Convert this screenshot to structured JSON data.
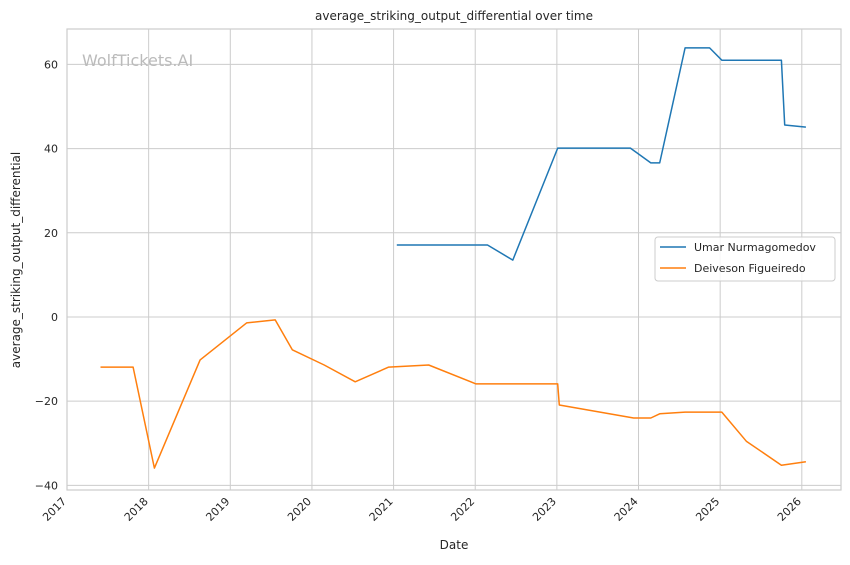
{
  "chart_data": {
    "type": "line",
    "title": "average_striking_output_differential over time",
    "xlabel": "Date",
    "ylabel": "average_striking_output_differential",
    "watermark": "WolfTickets.AI",
    "xlim": [
      2017.0,
      2026.48
    ],
    "ylim": [
      -41.1,
      68.4
    ],
    "grid": true,
    "legend_position": "center-right",
    "x_ticks": [
      2017,
      2018,
      2019,
      2020,
      2021,
      2022,
      2023,
      2024,
      2025,
      2026
    ],
    "x_tick_labels": [
      "2017",
      "2018",
      "2019",
      "2020",
      "2021",
      "2022",
      "2023",
      "2024",
      "2025",
      "2026"
    ],
    "y_ticks": [
      -40,
      -20,
      0,
      20,
      40,
      60
    ],
    "y_tick_labels": [
      "−40",
      "−20",
      "0",
      "20",
      "40",
      "60"
    ],
    "series": [
      {
        "name": "Umar Nurmagomedov",
        "color": "#1f77b4",
        "x": [
          2021.04,
          2022.15,
          2022.46,
          2023.01,
          2023.9,
          2024.15,
          2024.26,
          2024.57,
          2024.87,
          2025.02,
          2025.75,
          2025.79,
          2026.05
        ],
        "y": [
          17.1,
          17.1,
          13.5,
          40.1,
          40.1,
          36.6,
          36.6,
          63.9,
          63.9,
          61.0,
          61.0,
          45.6,
          45.1
        ]
      },
      {
        "name": "Deiveson Figueiredo",
        "color": "#ff7f0e",
        "x": [
          2017.41,
          2017.81,
          2018.07,
          2018.63,
          2019.2,
          2019.55,
          2019.76,
          2020.15,
          2020.53,
          2020.94,
          2021.43,
          2022.01,
          2023.01,
          2023.03,
          2023.94,
          2024.15,
          2024.26,
          2024.57,
          2025.02,
          2025.32,
          2025.75,
          2026.05
        ],
        "y": [
          -11.9,
          -11.9,
          -35.9,
          -10.2,
          -1.4,
          -0.7,
          -7.8,
          -11.4,
          -15.4,
          -11.9,
          -11.4,
          -15.9,
          -15.9,
          -20.9,
          -24.0,
          -24.0,
          -23.0,
          -22.6,
          -22.6,
          -29.5,
          -35.2,
          -34.4
        ]
      }
    ]
  }
}
